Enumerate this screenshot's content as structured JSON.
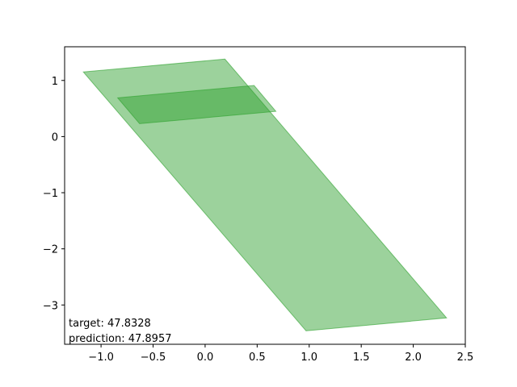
{
  "chart_data": {
    "type": "polygon",
    "title": "",
    "xlabel": "",
    "ylabel": "",
    "xlim": [
      -1.35,
      2.5
    ],
    "ylim": [
      -3.7,
      1.6
    ],
    "xticks": [
      -1.0,
      -0.5,
      0.0,
      0.5,
      1.0,
      1.5,
      2.0,
      2.5
    ],
    "xtick_labels": [
      "−1.0",
      "−0.5",
      "0.0",
      "0.5",
      "1.0",
      "1.5",
      "2.0",
      "2.5"
    ],
    "yticks": [
      1,
      0,
      -1,
      -2,
      -3
    ],
    "ytick_labels": [
      "1",
      "0",
      "−1",
      "−2",
      "−3"
    ],
    "grid": false,
    "series": [
      {
        "points": [
          [
            -1.17,
            1.15
          ],
          [
            0.19,
            1.38
          ],
          [
            2.32,
            -3.23
          ],
          [
            0.97,
            -3.46
          ]
        ],
        "fill": "#2ca02c",
        "fill_opacity": 0.47,
        "stroke": "#2ca02c"
      },
      {
        "points": [
          [
            -0.84,
            0.69
          ],
          [
            0.47,
            0.91
          ],
          [
            0.68,
            0.45
          ],
          [
            -0.63,
            0.23
          ]
        ],
        "fill": "#2ca02c",
        "fill_opacity": 0.47,
        "stroke": "#2ca02c"
      }
    ],
    "annotations": [
      "target: 47.8328",
      "prediction: 47.8957"
    ]
  }
}
